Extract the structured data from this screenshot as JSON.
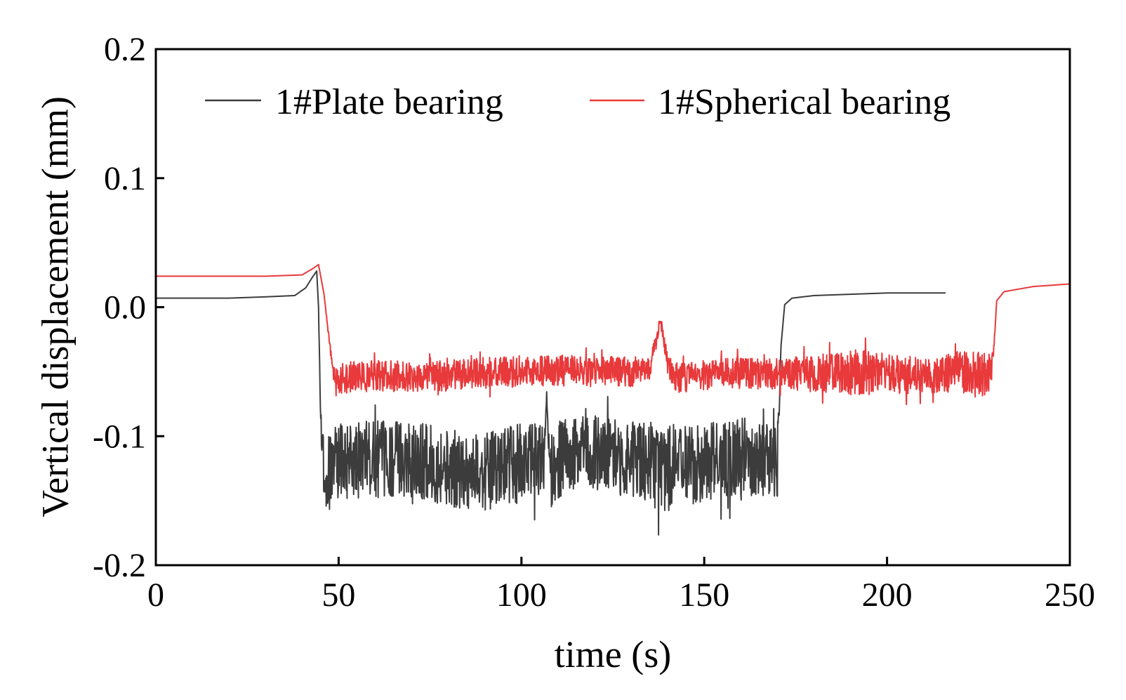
{
  "chart_data": {
    "type": "line",
    "xlabel": "time (s)",
    "ylabel": "Vertical displacement (mm)",
    "xlim": [
      0,
      250
    ],
    "ylim": [
      -0.2,
      0.2
    ],
    "xticks": [
      0,
      50,
      100,
      150,
      200,
      250
    ],
    "xtick_labels": [
      "0",
      "50",
      "100",
      "150",
      "200",
      "250"
    ],
    "yticks": [
      -0.2,
      -0.1,
      0.0,
      0.1,
      0.2
    ],
    "ytick_labels": [
      "-0.2",
      "-0.1",
      "0.0",
      "0.1",
      "0.2"
    ],
    "grid": false,
    "legend_position": "top",
    "series": [
      {
        "name": "1#Plate bearing",
        "color": "#3c3c3c",
        "x": [
          0,
          10,
          20,
          30,
          38,
          41,
          43,
          44,
          44.5,
          45,
          46,
          47,
          50,
          60,
          70,
          80,
          90,
          100,
          106,
          107,
          108,
          110,
          120,
          130,
          140,
          150,
          160,
          168,
          170,
          171,
          172,
          174,
          180,
          190,
          200,
          210,
          216
        ],
        "y": [
          0.007,
          0.007,
          0.007,
          0.008,
          0.009,
          0.015,
          0.024,
          0.028,
          0.0,
          -0.08,
          -0.125,
          -0.13,
          -0.12,
          -0.118,
          -0.117,
          -0.125,
          -0.128,
          -0.12,
          -0.118,
          -0.07,
          -0.13,
          -0.118,
          -0.112,
          -0.118,
          -0.125,
          -0.12,
          -0.115,
          -0.118,
          -0.12,
          -0.03,
          0.002,
          0.007,
          0.009,
          0.01,
          0.011,
          0.011,
          0.011
        ],
        "noise": [
          0,
          0,
          0,
          0,
          0,
          0,
          0,
          0,
          0,
          0.01,
          0.03,
          0.03,
          0.03,
          0.03,
          0.03,
          0.03,
          0.03,
          0.03,
          0.03,
          0.01,
          0.03,
          0.03,
          0.03,
          0.03,
          0.035,
          0.03,
          0.03,
          0.03,
          0.03,
          0,
          0,
          0,
          0,
          0,
          0,
          0,
          0
        ]
      },
      {
        "name": "1#Spherical bearing",
        "color": "#e8393b",
        "x": [
          0,
          10,
          20,
          30,
          40,
          43,
          44.5,
          46,
          48,
          49,
          50,
          60,
          70,
          80,
          90,
          100,
          110,
          120,
          130,
          135,
          137,
          138,
          139,
          140,
          142,
          150,
          160,
          170,
          180,
          190,
          200,
          210,
          220,
          228,
          229,
          230,
          232,
          240,
          250
        ],
        "y": [
          0.024,
          0.024,
          0.024,
          0.024,
          0.025,
          0.03,
          0.033,
          0.01,
          -0.04,
          -0.055,
          -0.055,
          -0.053,
          -0.054,
          -0.053,
          -0.051,
          -0.05,
          -0.049,
          -0.05,
          -0.05,
          -0.048,
          -0.025,
          -0.01,
          -0.025,
          -0.045,
          -0.055,
          -0.053,
          -0.051,
          -0.052,
          -0.052,
          -0.05,
          -0.052,
          -0.053,
          -0.05,
          -0.055,
          -0.04,
          0.005,
          0.012,
          0.016,
          0.018
        ],
        "noise": [
          0,
          0,
          0,
          0,
          0,
          0,
          0,
          0,
          0.004,
          0.01,
          0.012,
          0.012,
          0.012,
          0.012,
          0.012,
          0.012,
          0.012,
          0.012,
          0.012,
          0.008,
          0.006,
          0.004,
          0.006,
          0.01,
          0.012,
          0.012,
          0.012,
          0.012,
          0.014,
          0.018,
          0.016,
          0.014,
          0.016,
          0.02,
          0.005,
          0,
          0,
          0,
          0
        ]
      }
    ]
  }
}
